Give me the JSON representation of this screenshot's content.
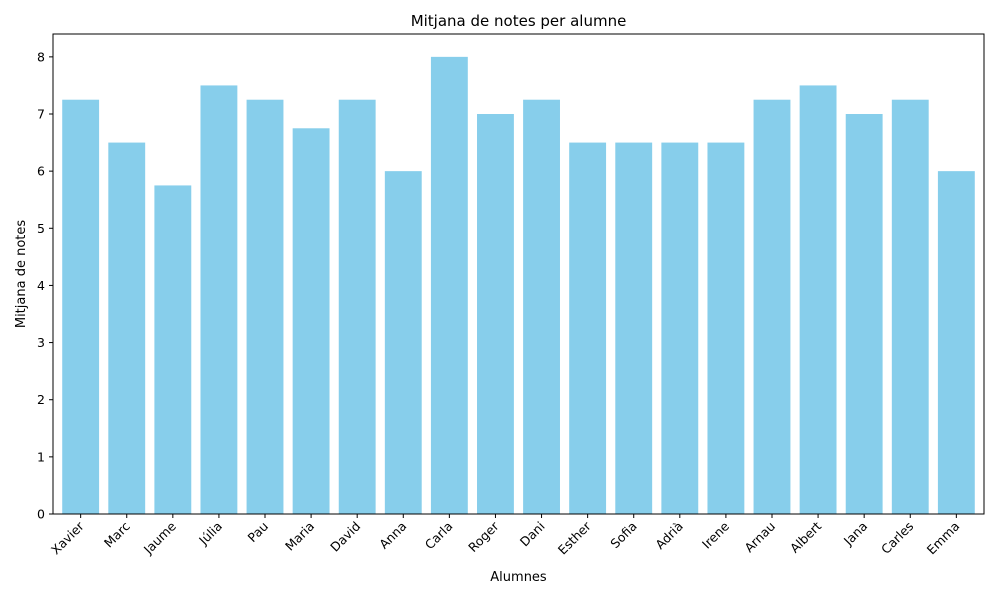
{
  "chart_data": {
    "type": "bar",
    "title": "Mitjana de notes per alumne",
    "xlabel": "Alumnes",
    "ylabel": "Mitjana de notes",
    "categories": [
      "Xavier",
      "Marc",
      "Jaume",
      "Júlia",
      "Pau",
      "Maria",
      "David",
      "Anna",
      "Carla",
      "Roger",
      "Dani",
      "Esther",
      "Sofia",
      "Adrià",
      "Irene",
      "Arnau",
      "Albert",
      "Jana",
      "Carles",
      "Emma"
    ],
    "values": [
      7.25,
      6.5,
      5.75,
      7.5,
      7.25,
      6.75,
      7.25,
      6.0,
      8.0,
      7.0,
      7.25,
      6.5,
      6.5,
      6.5,
      6.5,
      7.25,
      7.5,
      7.0,
      7.25,
      6.0
    ],
    "ylim": [
      0,
      8.4
    ],
    "yticks": [
      0,
      1,
      2,
      3,
      4,
      5,
      6,
      7,
      8
    ],
    "bar_color": "#87ceeb",
    "grid": false,
    "legend": "none"
  }
}
